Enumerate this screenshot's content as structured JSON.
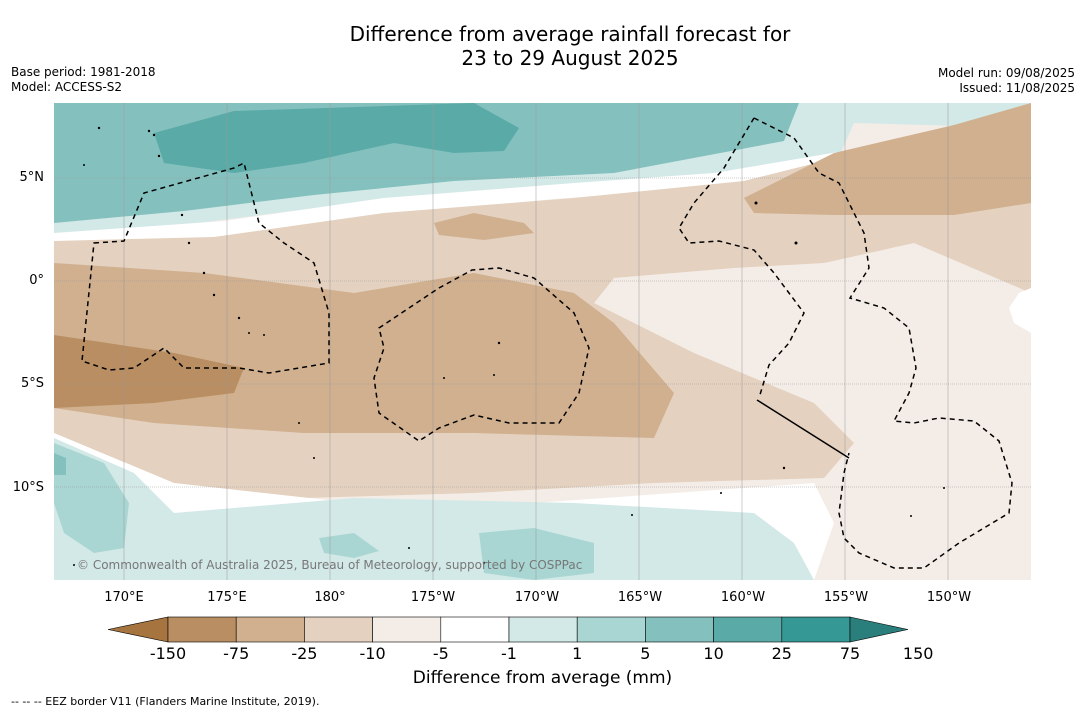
{
  "title": {
    "line1": "Difference from average rainfall forecast for",
    "line2": "23 to 29 August 2025"
  },
  "meta": {
    "base_period": "Base period: 1981-2018",
    "model": "Model: ACCESS-S2",
    "model_run": "Model run: 09/08/2025",
    "issued": "Issued: 11/08/2025"
  },
  "map": {
    "lat_labels": [
      "5°N",
      "0°",
      "5°S",
      "10°S"
    ],
    "lon_labels": [
      "170°E",
      "175°E",
      "180°",
      "175°W",
      "170°W",
      "165°W",
      "160°W",
      "155°W",
      "150°W"
    ],
    "copyright": "© Commonwealth of Australia 2025, Bureau of Meteorology, supported by COSPPac"
  },
  "colorbar": {
    "ticks": [
      "-150",
      "-75",
      "-25",
      "-10",
      "-5",
      "-1",
      "1",
      "5",
      "10",
      "25",
      "75",
      "150"
    ],
    "colors": [
      "#a6743f",
      "#b98e62",
      "#d0b08f",
      "#e4d1bf",
      "#f4ede7",
      "#ffffff",
      "#d3e9e7",
      "#a9d6d3",
      "#84c1be",
      "#5aaaa8",
      "#369894",
      "#2a7e7b"
    ],
    "label": "Difference from average (mm)"
  },
  "footer": {
    "eez_note": "--  --  -- EEZ border V11 (Flanders Marine Institute, 2019)."
  }
}
